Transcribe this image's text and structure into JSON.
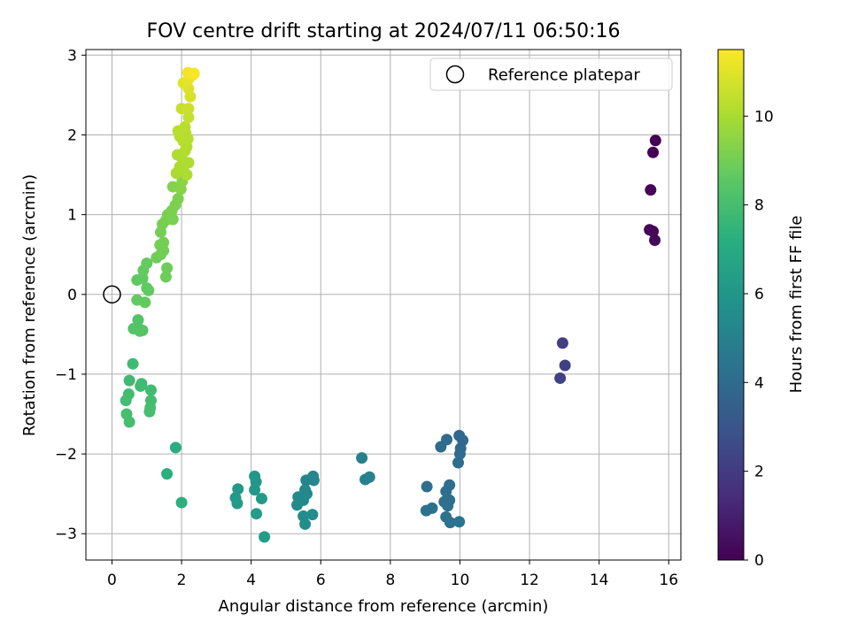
{
  "chart_data": {
    "type": "scatter",
    "title": "FOV centre drift starting at 2024/07/11 06:50:16",
    "xlabel": "Angular distance from reference (arcmin)",
    "ylabel": "Rotation from reference (arcmin)",
    "xlim": [
      -0.75,
      16.35
    ],
    "ylim": [
      -3.33,
      3.07
    ],
    "xticks": [
      0,
      2,
      4,
      6,
      8,
      10,
      12,
      14,
      16
    ],
    "yticks": [
      -3,
      -2,
      -1,
      0,
      1,
      2,
      3
    ],
    "grid": true,
    "legend": {
      "position": "top-right",
      "entries": [
        "Reference platepar"
      ]
    },
    "reference_point": {
      "x": 0,
      "y": 0
    },
    "colorbar": {
      "label": "Hours from first FF file",
      "range": [
        0,
        11.5
      ],
      "ticks": [
        0,
        2,
        4,
        6,
        8,
        10
      ],
      "colormap": "viridis"
    },
    "series": [
      {
        "name": "FOV centre",
        "points": [
          [
            15.62,
            1.93,
            0.0
          ],
          [
            15.55,
            1.78,
            0.05
          ],
          [
            15.48,
            1.31,
            0.1
          ],
          [
            15.45,
            0.81,
            0.15
          ],
          [
            15.55,
            0.79,
            0.2
          ],
          [
            15.6,
            0.68,
            0.25
          ],
          [
            12.95,
            -0.61,
            2.1
          ],
          [
            13.02,
            -0.89,
            2.15
          ],
          [
            12.88,
            -1.05,
            2.2
          ],
          [
            9.98,
            -1.77,
            3.9
          ],
          [
            10.08,
            -1.83,
            3.93
          ],
          [
            9.62,
            -1.82,
            3.96
          ],
          [
            9.45,
            -1.91,
            3.99
          ],
          [
            10.02,
            -1.93,
            4.02
          ],
          [
            10.0,
            -2.0,
            4.05
          ],
          [
            9.95,
            -2.11,
            4.08
          ],
          [
            9.7,
            -2.39,
            4.11
          ],
          [
            9.6,
            -2.47,
            4.14
          ],
          [
            9.05,
            -2.41,
            4.17
          ],
          [
            9.55,
            -2.6,
            4.2
          ],
          [
            9.7,
            -2.58,
            4.23
          ],
          [
            9.65,
            -2.65,
            4.26
          ],
          [
            9.2,
            -2.68,
            4.29
          ],
          [
            9.03,
            -2.71,
            4.32
          ],
          [
            9.6,
            -2.79,
            4.35
          ],
          [
            9.72,
            -2.86,
            4.38
          ],
          [
            9.98,
            -2.85,
            4.41
          ],
          [
            7.18,
            -2.05,
            4.9
          ],
          [
            7.28,
            -2.32,
            4.95
          ],
          [
            7.4,
            -2.29,
            5.0
          ],
          [
            5.58,
            -2.33,
            5.2
          ],
          [
            5.78,
            -2.28,
            5.24
          ],
          [
            5.8,
            -2.33,
            5.28
          ],
          [
            5.55,
            -2.45,
            5.32
          ],
          [
            5.6,
            -2.5,
            5.36
          ],
          [
            5.35,
            -2.54,
            5.4
          ],
          [
            5.5,
            -2.58,
            5.44
          ],
          [
            5.32,
            -2.64,
            5.48
          ],
          [
            5.5,
            -2.78,
            5.52
          ],
          [
            5.76,
            -2.76,
            5.56
          ],
          [
            5.55,
            -2.88,
            5.6
          ],
          [
            4.1,
            -2.28,
            6.0
          ],
          [
            4.14,
            -2.35,
            6.04
          ],
          [
            3.62,
            -2.44,
            6.08
          ],
          [
            4.1,
            -2.45,
            6.12
          ],
          [
            3.55,
            -2.55,
            6.16
          ],
          [
            4.3,
            -2.56,
            6.2
          ],
          [
            3.6,
            -2.62,
            6.24
          ],
          [
            4.15,
            -2.75,
            6.28
          ],
          [
            4.38,
            -3.04,
            6.32
          ],
          [
            1.83,
            -1.92,
            7.2
          ],
          [
            1.58,
            -2.25,
            7.25
          ],
          [
            2.0,
            -2.61,
            7.3
          ],
          [
            0.6,
            -0.87,
            7.8
          ],
          [
            0.5,
            -1.08,
            7.82
          ],
          [
            0.85,
            -1.12,
            7.84
          ],
          [
            0.82,
            -1.15,
            7.86
          ],
          [
            1.12,
            -1.2,
            7.88
          ],
          [
            0.48,
            -1.25,
            7.9
          ],
          [
            0.4,
            -1.33,
            7.92
          ],
          [
            1.12,
            -1.33,
            7.94
          ],
          [
            1.1,
            -1.42,
            7.96
          ],
          [
            1.08,
            -1.47,
            7.98
          ],
          [
            0.42,
            -1.5,
            8.0
          ],
          [
            0.5,
            -1.6,
            8.02
          ],
          [
            0.75,
            -0.32,
            8.3
          ],
          [
            0.75,
            -0.42,
            8.32
          ],
          [
            0.62,
            -0.43,
            8.34
          ],
          [
            0.88,
            -0.45,
            8.36
          ],
          [
            0.8,
            -0.46,
            8.38
          ],
          [
            0.72,
            0.18,
            8.6
          ],
          [
            0.88,
            0.2,
            8.62
          ],
          [
            1.0,
            0.08,
            8.64
          ],
          [
            1.05,
            0.05,
            8.66
          ],
          [
            0.72,
            -0.07,
            8.68
          ],
          [
            0.95,
            -0.1,
            8.7
          ],
          [
            0.9,
            0.3,
            8.72
          ],
          [
            1.0,
            0.39,
            8.74
          ],
          [
            1.55,
            0.22,
            8.9
          ],
          [
            1.58,
            0.33,
            8.92
          ],
          [
            1.28,
            0.46,
            8.94
          ],
          [
            1.4,
            0.5,
            8.96
          ],
          [
            1.48,
            0.55,
            8.98
          ],
          [
            1.38,
            0.62,
            9.0
          ],
          [
            1.48,
            0.65,
            9.02
          ],
          [
            1.4,
            0.78,
            9.04
          ],
          [
            1.45,
            0.88,
            9.06
          ],
          [
            1.55,
            0.93,
            9.08
          ],
          [
            1.6,
            1.0,
            9.1
          ],
          [
            1.75,
            0.94,
            9.12
          ],
          [
            1.72,
            1.05,
            9.14
          ],
          [
            1.82,
            1.12,
            9.16
          ],
          [
            1.9,
            1.2,
            9.18
          ],
          [
            1.75,
            1.35,
            9.3
          ],
          [
            1.98,
            1.32,
            9.35
          ],
          [
            2.02,
            1.42,
            9.4
          ],
          [
            1.85,
            1.52,
            10.0
          ],
          [
            2.05,
            1.55,
            10.02
          ],
          [
            2.15,
            1.5,
            10.04
          ],
          [
            1.95,
            1.6,
            10.06
          ],
          [
            2.2,
            1.65,
            10.08
          ],
          [
            2.0,
            1.72,
            10.1
          ],
          [
            1.88,
            1.75,
            10.12
          ],
          [
            2.1,
            1.8,
            10.14
          ],
          [
            2.15,
            1.85,
            10.16
          ],
          [
            2.05,
            1.92,
            10.18
          ],
          [
            1.95,
            1.98,
            10.2
          ],
          [
            2.18,
            1.95,
            10.22
          ],
          [
            2.12,
            2.02,
            10.24
          ],
          [
            1.9,
            2.05,
            10.26
          ],
          [
            2.1,
            2.1,
            10.28
          ],
          [
            2.2,
            2.22,
            10.5
          ],
          [
            2.0,
            2.33,
            10.55
          ],
          [
            2.2,
            2.33,
            10.6
          ],
          [
            2.25,
            2.48,
            10.8
          ],
          [
            2.2,
            2.58,
            10.9
          ],
          [
            2.05,
            2.65,
            11.0
          ],
          [
            2.2,
            2.7,
            11.1
          ],
          [
            2.32,
            2.75,
            11.2
          ],
          [
            2.18,
            2.78,
            11.3
          ],
          [
            2.36,
            2.77,
            11.4
          ]
        ]
      }
    ]
  }
}
